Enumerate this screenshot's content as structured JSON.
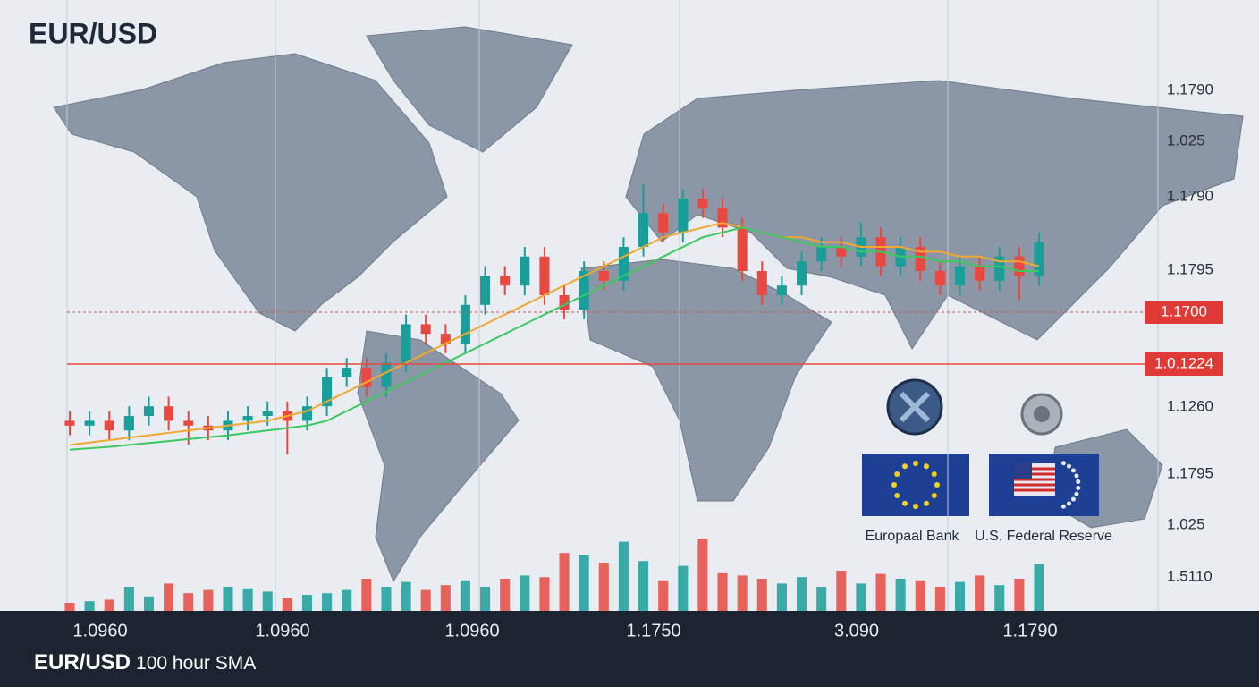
{
  "chart_data": {
    "type": "candlestick",
    "title": "EUR/USD",
    "footer_title": "EUR/USD",
    "footer_subtitle": "100 hour SMA",
    "up_color": "#1a9e9a",
    "down_color": "#e8483f",
    "ylim": [
      0,
      100
    ],
    "volume_lim": [
      0,
      100
    ],
    "price_labels": [
      "1.1790",
      "1.025",
      "1.1790",
      "1.1795",
      "1.1260",
      "1.1795",
      "1.025",
      "1.5110"
    ],
    "highlighted_levels": [
      "1.1700",
      "1.0.1224"
    ],
    "time_labels": [
      "1.0960",
      "1.0960",
      "1.0960",
      "1.1750",
      "3.090",
      "1.1790"
    ],
    "institutions": [
      "Europaal Bank",
      "U.S. Federal Reserve"
    ],
    "candles": [
      {
        "open": 24,
        "high": 26,
        "low": 21,
        "close": 23
      },
      {
        "open": 23,
        "high": 26,
        "low": 21,
        "close": 24
      },
      {
        "open": 24,
        "high": 26,
        "low": 20,
        "close": 22
      },
      {
        "open": 22,
        "high": 27,
        "low": 20,
        "close": 25
      },
      {
        "open": 25,
        "high": 29,
        "low": 23,
        "close": 27
      },
      {
        "open": 27,
        "high": 29,
        "low": 22,
        "close": 24
      },
      {
        "open": 24,
        "high": 26,
        "low": 19,
        "close": 23
      },
      {
        "open": 23,
        "high": 25,
        "low": 20,
        "close": 22
      },
      {
        "open": 22,
        "high": 26,
        "low": 20,
        "close": 24
      },
      {
        "open": 24,
        "high": 27,
        "low": 22,
        "close": 25
      },
      {
        "open": 25,
        "high": 28,
        "low": 23,
        "close": 26
      },
      {
        "open": 26,
        "high": 28,
        "low": 17,
        "close": 24
      },
      {
        "open": 24,
        "high": 29,
        "low": 22,
        "close": 27
      },
      {
        "open": 27,
        "high": 35,
        "low": 25,
        "close": 33
      },
      {
        "open": 33,
        "high": 37,
        "low": 31,
        "close": 35
      },
      {
        "open": 35,
        "high": 37,
        "low": 29,
        "close": 31
      },
      {
        "open": 31,
        "high": 38,
        "low": 29,
        "close": 36
      },
      {
        "open": 36,
        "high": 46,
        "low": 34,
        "close": 44
      },
      {
        "open": 44,
        "high": 46,
        "low": 40,
        "close": 42
      },
      {
        "open": 42,
        "high": 44,
        "low": 38,
        "close": 40
      },
      {
        "open": 40,
        "high": 50,
        "low": 38,
        "close": 48
      },
      {
        "open": 48,
        "high": 56,
        "low": 46,
        "close": 54
      },
      {
        "open": 54,
        "high": 56,
        "low": 50,
        "close": 52
      },
      {
        "open": 52,
        "high": 60,
        "low": 50,
        "close": 58
      },
      {
        "open": 58,
        "high": 60,
        "low": 48,
        "close": 50
      },
      {
        "open": 50,
        "high": 52,
        "low": 45,
        "close": 47
      },
      {
        "open": 47,
        "high": 57,
        "low": 45,
        "close": 55
      },
      {
        "open": 55,
        "high": 57,
        "low": 51,
        "close": 53
      },
      {
        "open": 53,
        "high": 62,
        "low": 51,
        "close": 60
      },
      {
        "open": 60,
        "high": 73,
        "low": 58,
        "close": 67
      },
      {
        "open": 67,
        "high": 69,
        "low": 61,
        "close": 63
      },
      {
        "open": 63,
        "high": 72,
        "low": 61,
        "close": 70
      },
      {
        "open": 70,
        "high": 72,
        "low": 66,
        "close": 68
      },
      {
        "open": 68,
        "high": 70,
        "low": 62,
        "close": 64
      },
      {
        "open": 64,
        "high": 66,
        "low": 53,
        "close": 55
      },
      {
        "open": 55,
        "high": 57,
        "low": 48,
        "close": 50
      },
      {
        "open": 50,
        "high": 54,
        "low": 48,
        "close": 52
      },
      {
        "open": 52,
        "high": 59,
        "low": 50,
        "close": 57
      },
      {
        "open": 57,
        "high": 62,
        "low": 55,
        "close": 60
      },
      {
        "open": 60,
        "high": 62,
        "low": 56,
        "close": 58
      },
      {
        "open": 58,
        "high": 65,
        "low": 56,
        "close": 62
      },
      {
        "open": 62,
        "high": 64,
        "low": 54,
        "close": 56
      },
      {
        "open": 56,
        "high": 62,
        "low": 54,
        "close": 60
      },
      {
        "open": 60,
        "high": 62,
        "low": 53,
        "close": 55
      },
      {
        "open": 55,
        "high": 57,
        "low": 50,
        "close": 52
      },
      {
        "open": 52,
        "high": 58,
        "low": 50,
        "close": 56
      },
      {
        "open": 56,
        "high": 58,
        "low": 51,
        "close": 53
      },
      {
        "open": 53,
        "high": 60,
        "low": 51,
        "close": 58
      },
      {
        "open": 58,
        "high": 60,
        "low": 49,
        "close": 54
      },
      {
        "open": 54,
        "high": 63,
        "low": 52,
        "close": 61
      }
    ],
    "volumes": [
      10,
      12,
      14,
      30,
      18,
      34,
      22,
      26,
      30,
      28,
      24,
      16,
      20,
      22,
      26,
      40,
      30,
      36,
      26,
      32,
      38,
      30,
      40,
      44,
      42,
      72,
      70,
      60,
      86,
      62,
      38,
      56,
      90,
      48,
      44,
      40,
      34,
      42,
      30,
      50,
      34,
      46,
      40,
      38,
      30,
      36,
      44,
      32,
      40,
      58
    ],
    "series": [
      {
        "name": "SMA fast",
        "color": "#f0a830",
        "values": [
          19,
          19.5,
          20,
          20.5,
          21,
          21.5,
          22,
          22.5,
          23,
          23.5,
          24,
          25,
          26,
          28,
          30,
          32,
          34,
          36,
          38,
          40,
          42,
          44,
          46,
          48,
          50,
          52,
          54,
          56,
          58,
          60,
          62,
          63,
          64,
          65,
          64,
          63,
          62,
          62,
          61,
          61,
          60,
          60,
          60,
          59,
          59,
          58,
          58,
          57,
          57,
          56
        ]
      },
      {
        "name": "SMA slow",
        "color": "#3cc860",
        "values": [
          18,
          18.3,
          18.6,
          19,
          19.4,
          19.8,
          20.2,
          20.6,
          21,
          21.5,
          22,
          22.5,
          23,
          24,
          26,
          28,
          30,
          32,
          34,
          36,
          38,
          40,
          42,
          44,
          46,
          48,
          50,
          52,
          54,
          56,
          58,
          60,
          62,
          63,
          64,
          63,
          62,
          61,
          60,
          60,
          59,
          59,
          58,
          58,
          57,
          57,
          56,
          56,
          55,
          55
        ]
      }
    ]
  }
}
